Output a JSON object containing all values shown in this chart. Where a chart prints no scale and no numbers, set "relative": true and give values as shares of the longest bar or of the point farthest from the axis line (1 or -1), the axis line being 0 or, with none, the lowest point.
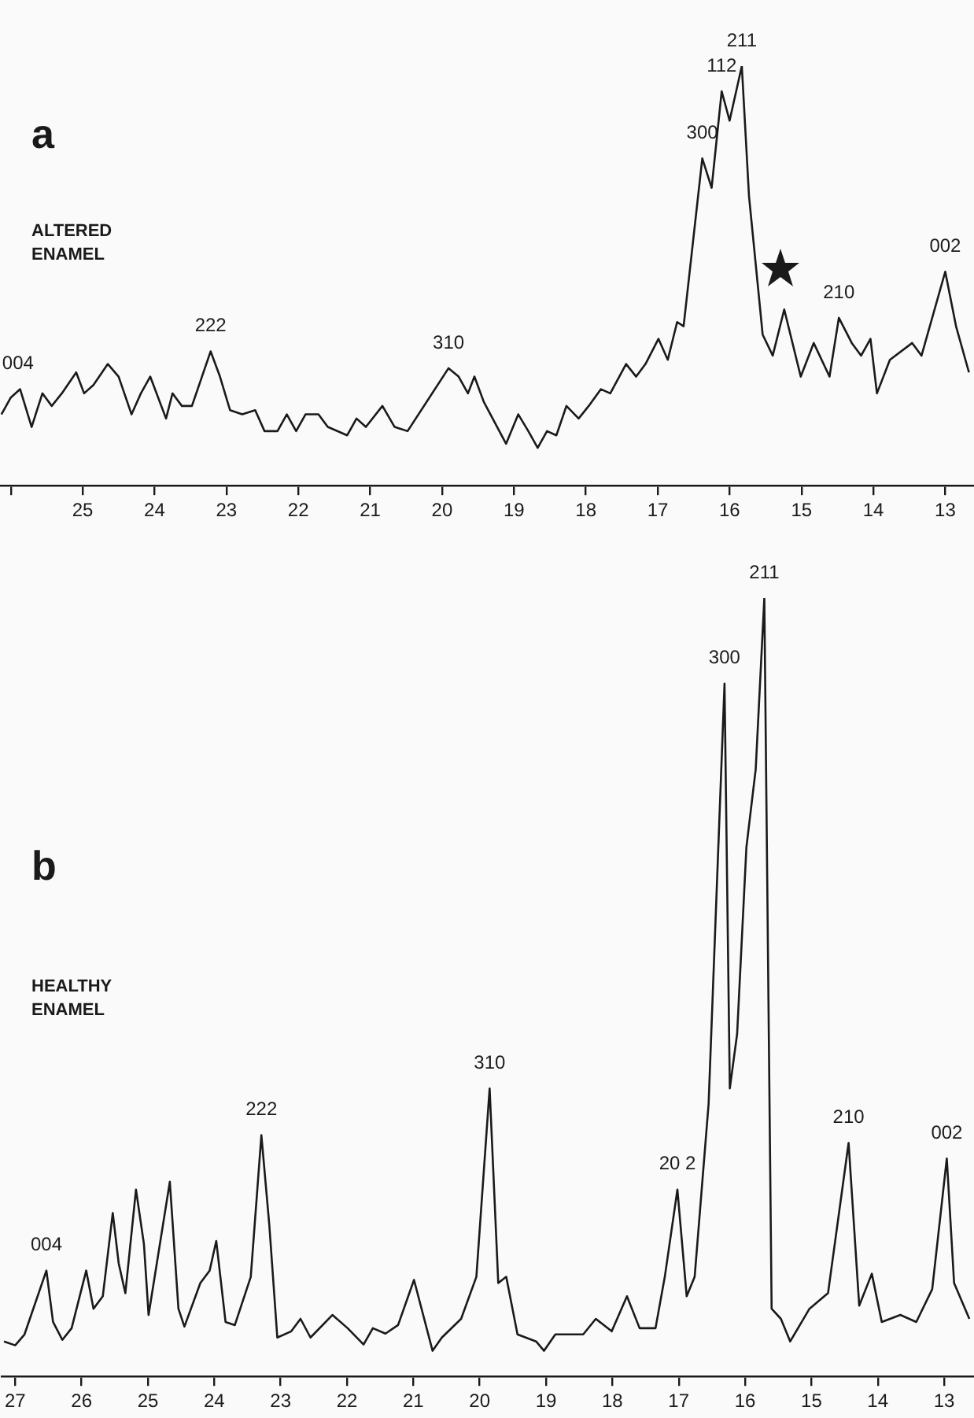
{
  "chart_data": [
    {
      "type": "line",
      "title": "a",
      "subtitle": "ALTERED ENAMEL",
      "relative": true,
      "color": "#1a1a1a",
      "x": [
        26.13,
        26.0,
        25.87,
        25.71,
        25.56,
        25.43,
        25.29,
        25.09,
        24.98,
        24.85,
        24.65,
        24.5,
        24.32,
        24.19,
        24.06,
        23.84,
        23.75,
        23.62,
        23.48,
        23.22,
        23.09,
        22.95,
        22.78,
        22.6,
        22.47,
        22.29,
        22.16,
        22.03,
        21.9,
        21.72,
        21.59,
        21.32,
        21.19,
        21.06,
        20.83,
        20.66,
        20.48,
        19.91,
        19.77,
        19.64,
        19.55,
        19.42,
        19.11,
        18.94,
        18.8,
        18.67,
        18.54,
        18.41,
        18.27,
        18.1,
        17.96,
        17.79,
        17.66,
        17.44,
        17.3,
        17.17,
        16.99,
        16.86,
        16.73,
        16.64,
        16.38,
        16.25,
        16.11,
        16.0,
        15.83,
        15.73,
        15.54,
        15.4,
        15.24,
        15.01,
        14.83,
        14.61,
        14.48,
        14.3,
        14.17,
        14.04,
        13.95,
        13.77,
        13.46,
        13.33,
        13.0,
        12.85,
        12.67
      ],
      "values": [
        0.17,
        0.21,
        0.23,
        0.14,
        0.22,
        0.19,
        0.22,
        0.27,
        0.22,
        0.24,
        0.29,
        0.26,
        0.17,
        0.22,
        0.26,
        0.16,
        0.22,
        0.19,
        0.19,
        0.32,
        0.26,
        0.18,
        0.17,
        0.18,
        0.13,
        0.13,
        0.17,
        0.13,
        0.17,
        0.17,
        0.14,
        0.12,
        0.16,
        0.14,
        0.19,
        0.14,
        0.13,
        0.28,
        0.26,
        0.22,
        0.26,
        0.2,
        0.1,
        0.17,
        0.13,
        0.09,
        0.13,
        0.12,
        0.19,
        0.16,
        0.19,
        0.23,
        0.22,
        0.29,
        0.26,
        0.29,
        0.35,
        0.3,
        0.39,
        0.38,
        0.78,
        0.71,
        0.94,
        0.87,
        1.0,
        0.69,
        0.36,
        0.31,
        0.42,
        0.26,
        0.34,
        0.26,
        0.4,
        0.34,
        0.31,
        0.35,
        0.22,
        0.3,
        0.34,
        0.31,
        0.51,
        0.38,
        0.27
      ],
      "xlim": [
        26.15,
        12.6
      ],
      "xticks": [
        {
          "value": 26,
          "label": null
        },
        25,
        24,
        23,
        22,
        21,
        20,
        19,
        18,
        17,
        16,
        15,
        14,
        13
      ],
      "annotations": [
        {
          "text": "004",
          "x": 25.9,
          "y": 0.23
        },
        {
          "text": "222",
          "x": 23.22,
          "y": 0.32
        },
        {
          "text": "310",
          "x": 19.91,
          "y": 0.28
        },
        {
          "text": "300",
          "x": 16.38,
          "y": 0.78
        },
        {
          "text": "112",
          "x": 16.11,
          "y": 0.94
        },
        {
          "text": "211",
          "x": 15.83,
          "y": 1.0
        },
        {
          "text": "210",
          "x": 14.48,
          "y": 0.4
        },
        {
          "text": "002",
          "x": 13.0,
          "y": 0.51
        }
      ]
    },
    {
      "type": "line",
      "title": "b",
      "subtitle": "HEALTHY ENAMEL",
      "relative": true,
      "color": "#1a1a1a",
      "x": [
        27.17,
        27.0,
        26.86,
        26.53,
        26.43,
        26.29,
        26.15,
        25.93,
        25.82,
        25.68,
        25.53,
        25.44,
        25.34,
        25.18,
        25.06,
        24.99,
        24.67,
        24.54,
        24.45,
        24.21,
        24.07,
        23.97,
        23.83,
        23.69,
        23.45,
        23.29,
        23.17,
        23.05,
        22.84,
        22.7,
        22.55,
        22.22,
        21.99,
        21.75,
        21.61,
        21.42,
        21.23,
        20.99,
        20.71,
        20.57,
        20.28,
        20.05,
        19.85,
        19.72,
        19.6,
        19.43,
        19.15,
        19.03,
        18.86,
        18.44,
        18.25,
        18.01,
        17.78,
        17.59,
        17.35,
        17.21,
        17.02,
        16.88,
        16.76,
        16.55,
        16.31,
        16.23,
        16.12,
        15.98,
        15.84,
        15.71,
        15.6,
        15.46,
        15.32,
        15.03,
        14.75,
        14.44,
        14.28,
        14.09,
        13.94,
        13.66,
        13.42,
        13.18,
        12.96,
        12.85,
        12.62
      ],
      "values": [
        0.045,
        0.04,
        0.054,
        0.136,
        0.07,
        0.047,
        0.062,
        0.136,
        0.087,
        0.103,
        0.21,
        0.145,
        0.107,
        0.24,
        0.17,
        0.079,
        0.25,
        0.087,
        0.064,
        0.12,
        0.136,
        0.174,
        0.07,
        0.066,
        0.128,
        0.31,
        0.194,
        0.05,
        0.058,
        0.074,
        0.05,
        0.079,
        0.062,
        0.041,
        0.062,
        0.055,
        0.066,
        0.124,
        0.033,
        0.05,
        0.074,
        0.128,
        0.37,
        0.12,
        0.128,
        0.054,
        0.045,
        0.033,
        0.054,
        0.054,
        0.074,
        0.058,
        0.103,
        0.062,
        0.062,
        0.128,
        0.24,
        0.103,
        0.128,
        0.35,
        0.89,
        0.37,
        0.44,
        0.68,
        0.78,
        1.0,
        0.087,
        0.074,
        0.045,
        0.087,
        0.107,
        0.3,
        0.091,
        0.132,
        0.07,
        0.079,
        0.07,
        0.112,
        0.28,
        0.12,
        0.074
      ],
      "xlim": [
        27.2,
        12.55
      ],
      "xticks": [
        27,
        26,
        25,
        24,
        23,
        22,
        21,
        20,
        19,
        18,
        17,
        16,
        15,
        14,
        13
      ],
      "annotations": [
        {
          "text": "004",
          "x": 26.53,
          "y": 0.136
        },
        {
          "text": "222",
          "x": 23.29,
          "y": 0.31
        },
        {
          "text": "310",
          "x": 19.85,
          "y": 0.37
        },
        {
          "text": "20 2",
          "x": 17.02,
          "y": 0.24
        },
        {
          "text": "300",
          "x": 16.31,
          "y": 0.89
        },
        {
          "text": "211",
          "x": 15.71,
          "y": 1.0
        },
        {
          "text": "210",
          "x": 14.44,
          "y": 0.3
        },
        {
          "text": "002",
          "x": 12.96,
          "y": 0.28
        }
      ]
    }
  ]
}
